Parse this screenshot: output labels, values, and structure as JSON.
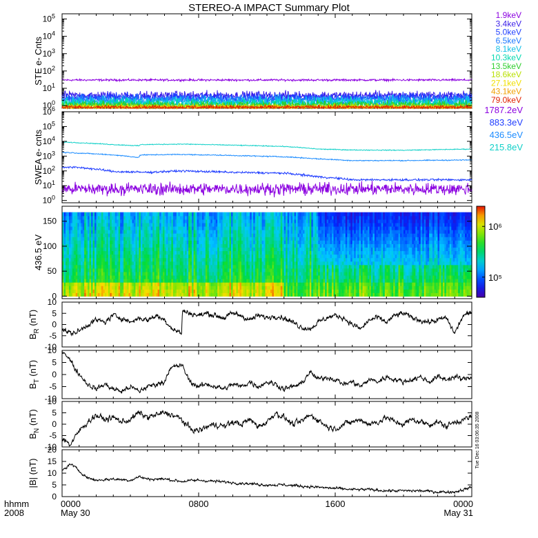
{
  "title": "STEREO-A IMPACT Summary Plot",
  "footer": {
    "hhmm_label": "hhmm",
    "year_label": "2008",
    "time_ticks": [
      "0000",
      "0800",
      "1600",
      "0000"
    ],
    "date_ticks": [
      "May 30",
      "",
      "",
      "May 31"
    ]
  },
  "side_stamp": "Tue Dec 16 03:06:35 2008",
  "chart_data": [
    {
      "id": "ste",
      "type": "line",
      "ylabel": "STE e- Cnts",
      "yscale": "log",
      "ylim": [
        0.7,
        200000
      ],
      "yticks": [
        1,
        10,
        100,
        1000,
        10000,
        100000
      ],
      "xlim": [
        0,
        24
      ],
      "series": [
        {
          "name": "1.9keV",
          "color": "#8b00e0",
          "level": 30,
          "noise": 0.05
        },
        {
          "name": "3.4keV",
          "color": "#3a1ee8",
          "level": 3.8,
          "noise": 0.22
        },
        {
          "name": "5.0keV",
          "color": "#1f3dff",
          "level": 2.8,
          "noise": 0.24
        },
        {
          "name": "6.5keV",
          "color": "#1c78ff",
          "level": 2.2,
          "noise": 0.26
        },
        {
          "name": "8.1keV",
          "color": "#0fbfe6",
          "level": 1.7,
          "noise": 0.28
        },
        {
          "name": "10.3keV",
          "color": "#00d9b0",
          "level": 1.3,
          "noise": 0.25
        },
        {
          "name": "13.5keV",
          "color": "#2ecf2e",
          "level": 1.1,
          "noise": 0.2
        },
        {
          "name": "18.6keV",
          "color": "#b8e000",
          "level": 0.9,
          "noise": 0.15
        },
        {
          "name": "27.1keV",
          "color": "#f0e000",
          "level": 0.8,
          "noise": 0.1
        },
        {
          "name": "43.1keV",
          "color": "#f0a000",
          "level": 0.8,
          "noise": 0.1
        },
        {
          "name": "79.0keV",
          "color": "#e02000",
          "level": 0.8,
          "noise": 0.1
        }
      ]
    },
    {
      "id": "swea",
      "type": "line",
      "ylabel": "SWEA e- cnts",
      "yscale": "log",
      "ylim": [
        0.7,
        1000000
      ],
      "yticks": [
        1,
        10,
        100,
        1000,
        10000,
        100000,
        1000000
      ],
      "xlim": [
        0,
        24
      ],
      "series": [
        {
          "name": "1787.2eV",
          "color": "#8b00e0",
          "x": [
            0,
            24
          ],
          "y": [
            6,
            6
          ],
          "noise": 0.35
        },
        {
          "name": "883.3eV",
          "color": "#1f3dff",
          "x": [
            0,
            1,
            3,
            5,
            7,
            10,
            13,
            15,
            17,
            20,
            24
          ],
          "y": [
            180,
            170,
            90,
            80,
            100,
            80,
            70,
            40,
            25,
            25,
            25
          ],
          "noise": 0.06
        },
        {
          "name": "436.5eV",
          "color": "#1c8cff",
          "x": [
            0,
            3,
            4.5,
            4.6,
            7,
            10,
            13,
            15,
            17,
            20,
            24
          ],
          "y": [
            1800,
            1200,
            800,
            1200,
            1300,
            1100,
            900,
            650,
            500,
            500,
            550
          ],
          "noise": 0.03
        },
        {
          "name": "215.8eV",
          "color": "#10d0c8",
          "x": [
            0,
            3,
            4.5,
            4.6,
            7,
            10,
            13,
            15,
            17,
            20,
            24
          ],
          "y": [
            9000,
            6000,
            5000,
            6000,
            6500,
            5500,
            4500,
            3000,
            2600,
            2500,
            3000
          ],
          "noise": 0.025
        }
      ]
    },
    {
      "id": "pad",
      "type": "heatmap",
      "ylabel": "436.5 eV",
      "ylim": [
        -5,
        180
      ],
      "yticks": [
        0,
        50,
        100,
        150
      ],
      "xlim": [
        0,
        24
      ],
      "colorbar": {
        "scale": "log",
        "range": [
          40000,
          2500000
        ],
        "ticks": [
          {
            "value": 100000,
            "label": "10⁵"
          },
          {
            "value": 1000000,
            "label": "10⁶"
          }
        ]
      }
    },
    {
      "id": "br",
      "type": "line",
      "ylabel_main": "B",
      "ylabel_sub": "R",
      "ylabel_units": " (nT)",
      "ylim": [
        -10,
        10
      ],
      "yticks": [
        -10,
        -5,
        0,
        5,
        10
      ],
      "xlim": [
        0,
        24
      ],
      "series": [
        {
          "name": "",
          "color": "#000000",
          "x": [
            0,
            0.5,
            1,
            1.5,
            2,
            2.5,
            3,
            3.5,
            4,
            4.5,
            5,
            5.5,
            6,
            6.5,
            7,
            7.05,
            7.5,
            8,
            8.5,
            9,
            9.5,
            10,
            10.5,
            11,
            11.5,
            12,
            12.5,
            13,
            13.5,
            14,
            14.5,
            15,
            15.5,
            16,
            16.5,
            17,
            17.5,
            18,
            18.5,
            19,
            19.5,
            20,
            20.5,
            21,
            21.5,
            22,
            22.5,
            23,
            23.5,
            24
          ],
          "y": [
            -2,
            -4,
            -3,
            0,
            2,
            1,
            4,
            3,
            1,
            3,
            2,
            4,
            2,
            -2,
            -4,
            6,
            5,
            4,
            5,
            4,
            3,
            5,
            4,
            2,
            4,
            3,
            4,
            3,
            1,
            -1,
            -2,
            1,
            3,
            4,
            3,
            0,
            -2,
            2,
            3,
            1,
            4,
            5,
            3,
            2,
            1,
            2,
            3,
            -4,
            4,
            5
          ],
          "noise": 1.0
        }
      ]
    },
    {
      "id": "bt",
      "type": "line",
      "ylabel_main": "B",
      "ylabel_sub": "T",
      "ylabel_units": " (nT)",
      "ylim": [
        -10,
        10
      ],
      "yticks": [
        -10,
        -5,
        0,
        5,
        10
      ],
      "xlim": [
        0,
        24
      ],
      "series": [
        {
          "name": "",
          "color": "#000000",
          "x": [
            0,
            0.3,
            0.8,
            1.5,
            2,
            2.5,
            3,
            3.5,
            4,
            4.5,
            5,
            5.5,
            6,
            6.2,
            6.5,
            7,
            7.5,
            8,
            8.5,
            9,
            9.5,
            10,
            10.5,
            11,
            11.5,
            12,
            12.5,
            13,
            13.5,
            14,
            14.5,
            15,
            15.5,
            16,
            16.5,
            17,
            17.5,
            18,
            18.5,
            19,
            19.5,
            20,
            20.5,
            21,
            21.5,
            22,
            22.5,
            23,
            23.5,
            24
          ],
          "y": [
            10,
            8,
            2,
            -4,
            -6,
            -4,
            -6,
            -7,
            -5,
            -7,
            -5,
            -4,
            -3,
            1,
            3,
            4,
            -3,
            -5,
            -4,
            -5,
            -6,
            -4,
            -5,
            -3,
            -5,
            -3,
            -4,
            -6,
            -5,
            -4,
            1,
            -2,
            -1,
            -2,
            -4,
            -3,
            -5,
            -2,
            -3,
            -1,
            -2,
            -3,
            -2,
            -1,
            -3,
            -1,
            -2,
            -1,
            -2,
            -1
          ],
          "noise": 0.9
        }
      ]
    },
    {
      "id": "bn",
      "type": "line",
      "ylabel_main": "B",
      "ylabel_sub": "N",
      "ylabel_units": " (nT)",
      "ylim": [
        -10,
        10
      ],
      "yticks": [
        -10,
        -5,
        0,
        5,
        10
      ],
      "xlim": [
        0,
        24
      ],
      "series": [
        {
          "name": "",
          "color": "#000000",
          "x": [
            0,
            0.5,
            1,
            1.5,
            2,
            2.5,
            3,
            3.5,
            4,
            4.5,
            5,
            5.5,
            6,
            6.5,
            7,
            7.5,
            8,
            8.5,
            9,
            9.5,
            10,
            10.5,
            11,
            11.5,
            12,
            12.5,
            13,
            13.5,
            14,
            14.5,
            15,
            15.5,
            16,
            16.5,
            17,
            17.5,
            18,
            18.5,
            19,
            19.5,
            20,
            20.5,
            21,
            21.5,
            22,
            22.5,
            23,
            23.5,
            24
          ],
          "y": [
            -6,
            -9,
            -3,
            1,
            4,
            2,
            3,
            1,
            2,
            5,
            3,
            4,
            5,
            4,
            2,
            -2,
            -3,
            -1,
            0,
            -1,
            1,
            0,
            2,
            -1,
            1,
            5,
            3,
            0,
            1,
            4,
            2,
            -1,
            -2,
            0,
            1,
            2,
            0,
            1,
            3,
            1,
            0,
            2,
            1,
            0,
            1,
            -1,
            1,
            2,
            3
          ],
          "noise": 1.1
        }
      ]
    },
    {
      "id": "bmag",
      "type": "line",
      "ylabel_main": "|B| (nT)",
      "ylim": [
        0,
        20
      ],
      "yticks": [
        0,
        5,
        10,
        15,
        20
      ],
      "xlim": [
        0,
        24
      ],
      "series": [
        {
          "name": "",
          "color": "#000000",
          "x": [
            0,
            0.5,
            1,
            1.5,
            2,
            3,
            4,
            4.5,
            5,
            6,
            7,
            8,
            9,
            10,
            11,
            12,
            13,
            14,
            15,
            16,
            17,
            18,
            19,
            20,
            21,
            22,
            23,
            23.5,
            24
          ],
          "y": [
            11,
            14,
            11,
            8,
            7,
            7.5,
            7,
            8.5,
            7.5,
            7.5,
            6.5,
            7,
            6.5,
            6,
            5.5,
            5,
            5,
            4.5,
            4,
            3.5,
            3,
            3,
            2.5,
            2.5,
            2.5,
            2,
            2,
            3,
            4
          ],
          "noise": 0.5
        }
      ]
    }
  ],
  "axis_dashes": [
    "--",
    "--",
    "--",
    "--",
    "--",
    "--",
    "--",
    "--",
    "--",
    "--",
    "--",
    "--",
    "--",
    "--",
    "--",
    "--"
  ],
  "bfield_tick_labels": [
    "-10",
    "-5",
    "0",
    "5",
    "10"
  ],
  "bmag_tick_labels": [
    "0",
    "5",
    "10",
    "15",
    "20"
  ],
  "pad_tick_labels": [
    "0",
    "50",
    "100",
    "150"
  ]
}
